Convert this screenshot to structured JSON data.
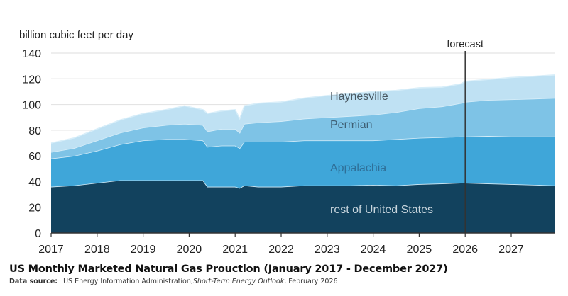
{
  "chart_data": {
    "type": "area",
    "stacked": true,
    "title": "US Monthly Marketed Natural Gas Prouction (January 2017 - December 2027)",
    "ylabel": "billion cubic feet per day",
    "xlabel": "",
    "ylim": [
      0,
      140
    ],
    "yticks": [
      0,
      20,
      40,
      60,
      80,
      100,
      120,
      140
    ],
    "xticks": [
      "2017",
      "2018",
      "2019",
      "2020",
      "2021",
      "2022",
      "2023",
      "2024",
      "2025",
      "2026",
      "2027"
    ],
    "grid": "horizontal",
    "annotation": {
      "text": "forecast",
      "x": 2026.0
    },
    "x": [
      2017.0,
      2017.5,
      2018.0,
      2018.5,
      2019.0,
      2019.5,
      2019.9,
      2020.3,
      2020.4,
      2020.7,
      2021.0,
      2021.1,
      2021.2,
      2021.5,
      2022.0,
      2022.5,
      2023.0,
      2023.5,
      2024.0,
      2024.5,
      2025.0,
      2025.5,
      2025.9,
      2026.0,
      2026.5,
      2027.0,
      2027.5,
      2027.95
    ],
    "series": [
      {
        "name": "rest of United States",
        "color": "#12425e",
        "values": [
          36,
          37,
          39,
          41,
          41,
          41,
          41,
          41,
          36,
          36,
          36,
          35,
          37,
          36,
          36,
          37,
          37,
          37,
          37.5,
          37,
          38,
          38.5,
          39,
          39,
          38.5,
          38,
          37.5,
          37
        ]
      },
      {
        "name": "Appalachia",
        "color": "#3fa6d9",
        "values": [
          22,
          23,
          25,
          28,
          31,
          32,
          32,
          31,
          31,
          32,
          32,
          31,
          34,
          35,
          35,
          35,
          35,
          35,
          34.5,
          36,
          36,
          36,
          36,
          36,
          37,
          37,
          37.5,
          38
        ]
      },
      {
        "name": "Permian",
        "color": "#7ec3e6",
        "values": [
          5,
          6,
          8,
          9,
          10,
          11,
          12,
          12,
          12,
          13,
          13,
          12,
          14,
          15,
          16,
          17,
          18,
          19,
          20,
          21,
          23,
          24,
          26,
          27,
          28,
          29,
          29.5,
          30
        ]
      },
      {
        "name": "Haynesville",
        "color": "#bfe1f3",
        "values": [
          7,
          8,
          9,
          10,
          11,
          12,
          14,
          12,
          14,
          14,
          15,
          11,
          14,
          15,
          15,
          16,
          17,
          17.5,
          18,
          17,
          16,
          15,
          15,
          16,
          16,
          17,
          17.5,
          18
        ]
      }
    ]
  },
  "labels": {
    "y_axis_title": "billion cubic feet per day",
    "forecast": "forecast",
    "haynesville": "Haynesville",
    "permian": "Permian",
    "appalachia": "Appalachia",
    "rest": "rest of United States"
  },
  "caption": {
    "title": "US Monthly Marketed Natural Gas Prouction (January 2017 - December 2027)",
    "source_label": "Data source:",
    "source_text": "US Energy Information Administration,",
    "source_italic": "Short-Term Energy Outlook",
    "source_tail": ", February 2026"
  }
}
